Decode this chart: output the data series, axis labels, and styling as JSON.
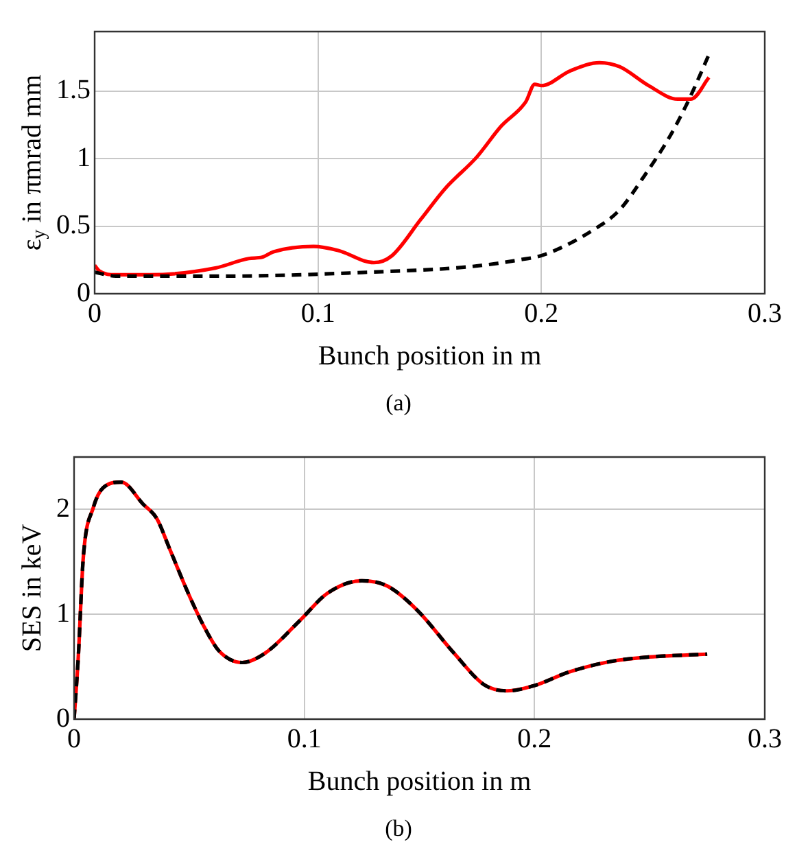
{
  "chart_data": [
    {
      "type": "line",
      "xlabel": "Bunch position in m",
      "ylabel": "ε$_{y}$ in πmrad mm",
      "annotations": [
        "(a)"
      ],
      "xlim": [
        0,
        0.3
      ],
      "xticks": [
        0,
        0.1,
        0.2,
        0.3
      ],
      "ylim": [
        0,
        1.94
      ],
      "yticks": [
        0,
        0.5,
        1,
        1.5
      ],
      "grid": true,
      "legend": false,
      "series": [
        {
          "color": "#ff0000",
          "line_style": "solid",
          "x": [
            0,
            0.002,
            0.0095,
            0.025,
            0.054,
            0.069,
            0.075,
            0.08,
            0.098,
            0.109,
            0.125,
            0.133,
            0.146,
            0.157,
            0.171,
            0.182,
            0.193,
            0.197,
            0.2,
            0.213,
            0.226,
            0.235,
            0.248,
            0.261,
            0.267,
            0.275
          ],
          "values": [
            0.21,
            0.17,
            0.14,
            0.14,
            0.19,
            0.26,
            0.27,
            0.31,
            0.35,
            0.32,
            0.23,
            0.28,
            0.55,
            0.78,
            1.01,
            1.24,
            1.42,
            1.55,
            1.54,
            1.65,
            1.71,
            1.68,
            1.54,
            1.44,
            1.44,
            1.6
          ]
        },
        {
          "color": "#000000",
          "line_style": "dashed",
          "x": [
            0,
            0.0095,
            0.058,
            0.124,
            0.168,
            0.19,
            0.2015,
            0.224,
            0.235,
            0.246,
            0.257,
            0.265,
            0.27,
            0.275
          ],
          "values": [
            0.16,
            0.13,
            0.13,
            0.16,
            0.2,
            0.25,
            0.29,
            0.48,
            0.62,
            0.87,
            1.15,
            1.4,
            1.58,
            1.77
          ]
        }
      ]
    },
    {
      "type": "line",
      "xlabel": "Bunch position in m",
      "ylabel": "SES in keV",
      "annotations": [
        "(b)"
      ],
      "xlim": [
        0,
        0.3
      ],
      "xticks": [
        0,
        0.1,
        0.2,
        0.3
      ],
      "ylim": [
        0,
        2.5
      ],
      "yticks": [
        0,
        1,
        2
      ],
      "grid": true,
      "legend": false,
      "series": [
        {
          "color": "#ff0000",
          "line_style": "solid",
          "x": [
            0,
            0.0018,
            0.004,
            0.0084,
            0.0128,
            0.0205,
            0.03,
            0.036,
            0.0414,
            0.05,
            0.057,
            0.063,
            0.073,
            0.083,
            0.0985,
            0.11,
            0.125,
            0.136,
            0.149,
            0.165,
            0.178,
            0.188,
            0.2,
            0.215,
            0.233,
            0.248,
            0.275
          ],
          "values": [
            0,
            0.58,
            1.54,
            2.02,
            2.21,
            2.26,
            2.05,
            1.91,
            1.63,
            1.18,
            0.86,
            0.65,
            0.54,
            0.63,
            0.95,
            1.2,
            1.32,
            1.27,
            1.04,
            0.63,
            0.33,
            0.27,
            0.32,
            0.45,
            0.55,
            0.59,
            0.62
          ]
        },
        {
          "color": "#000000",
          "line_style": "dashed",
          "x": [
            0,
            0.0018,
            0.004,
            0.0084,
            0.0128,
            0.0205,
            0.03,
            0.036,
            0.0414,
            0.05,
            0.057,
            0.063,
            0.073,
            0.083,
            0.0985,
            0.11,
            0.125,
            0.136,
            0.149,
            0.165,
            0.178,
            0.188,
            0.2,
            0.215,
            0.233,
            0.248,
            0.275
          ],
          "values": [
            0,
            0.58,
            1.54,
            2.02,
            2.21,
            2.26,
            2.05,
            1.91,
            1.63,
            1.18,
            0.86,
            0.65,
            0.54,
            0.63,
            0.95,
            1.2,
            1.32,
            1.27,
            1.04,
            0.63,
            0.33,
            0.27,
            0.32,
            0.45,
            0.55,
            0.59,
            0.62
          ]
        }
      ]
    }
  ]
}
